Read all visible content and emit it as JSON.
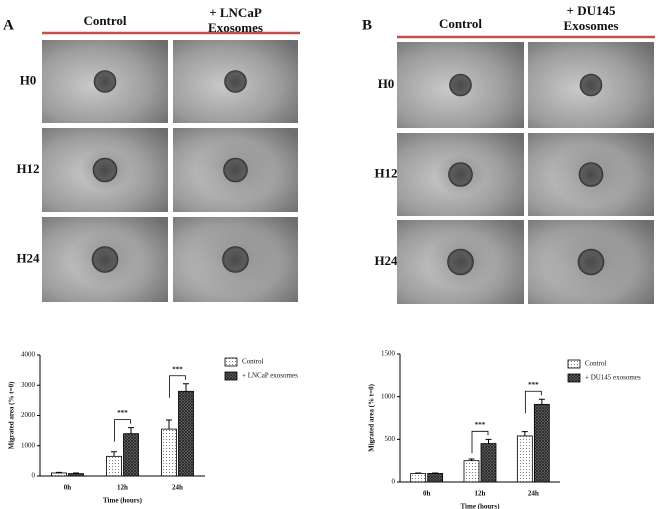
{
  "panels": [
    {
      "label": "A",
      "headers": [
        [
          "Control"
        ],
        [
          "+ LNCaP",
          "Exosomes"
        ]
      ],
      "rows": [
        "H0",
        "H12",
        "H24"
      ]
    },
    {
      "label": "B",
      "headers": [
        [
          "Control"
        ],
        [
          "+ DU145",
          "Exosomes"
        ]
      ],
      "rows": [
        "H0",
        "H12",
        "H24"
      ]
    }
  ],
  "chart_data": [
    {
      "type": "bar",
      "x_label": "Time (hours)",
      "y_label": "Migrated area (% t=0)",
      "categories": [
        "0h",
        "12h",
        "24h"
      ],
      "series": [
        {
          "name": "Control",
          "values": [
            100,
            650,
            1550
          ],
          "errors": [
            20,
            150,
            300
          ]
        },
        {
          "name": "+ LNCaP exosomes",
          "values": [
            80,
            1400,
            2800
          ],
          "errors": [
            20,
            200,
            250
          ]
        }
      ],
      "annotations": [
        {
          "text": "***",
          "category": "12h"
        },
        {
          "text": "***",
          "category": "24h"
        }
      ],
      "ylim": [
        0,
        4000
      ],
      "yticks": [
        0,
        1000,
        2000,
        3000,
        4000
      ]
    },
    {
      "type": "bar",
      "x_label": "Time (hours)",
      "y_label": "Migrated area (% t=0)",
      "categories": [
        "0h",
        "12h",
        "24h"
      ],
      "series": [
        {
          "name": "Control",
          "values": [
            100,
            250,
            540
          ],
          "errors": [
            5,
            20,
            50
          ]
        },
        {
          "name": "+ DU145 exosomes",
          "values": [
            100,
            450,
            910
          ],
          "errors": [
            5,
            50,
            60
          ]
        }
      ],
      "annotations": [
        {
          "text": "***",
          "category": "12h"
        },
        {
          "text": "***",
          "category": "24h"
        }
      ],
      "ylim": [
        0,
        1500
      ],
      "yticks": [
        0,
        500,
        1000,
        1500
      ]
    }
  ]
}
